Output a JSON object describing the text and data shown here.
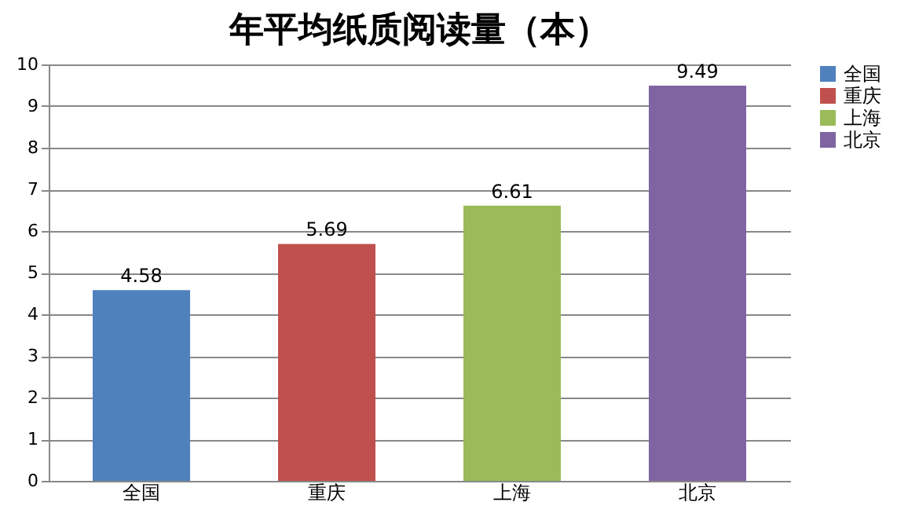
{
  "chart_data": {
    "type": "bar",
    "title": "年平均纸质阅读量（本）",
    "categories": [
      "全国",
      "重庆",
      "上海",
      "北京"
    ],
    "series": [
      {
        "name": "全国",
        "color": "#4f81bd",
        "values": [
          4.58,
          null,
          null,
          null
        ]
      },
      {
        "name": "重庆",
        "color": "#c0504d",
        "values": [
          null,
          5.69,
          null,
          null
        ]
      },
      {
        "name": "上海",
        "color": "#9bbb59",
        "values": [
          null,
          null,
          6.61,
          null
        ]
      },
      {
        "name": "北京",
        "color": "#8064a2",
        "values": [
          null,
          null,
          null,
          9.49
        ]
      }
    ],
    "ylim": [
      0,
      10
    ],
    "yticks": [
      0,
      1,
      2,
      3,
      4,
      5,
      6,
      7,
      8,
      9,
      10
    ],
    "grid": "y",
    "legend": "right",
    "data_labels": true
  }
}
